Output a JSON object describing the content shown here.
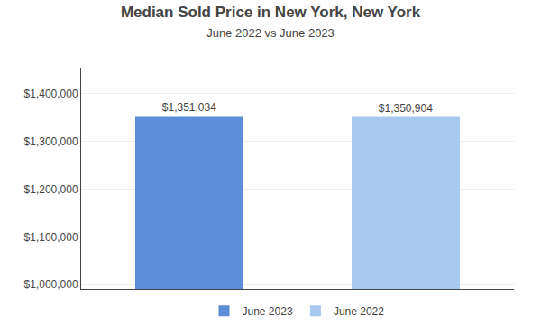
{
  "chart_data": {
    "type": "bar",
    "title": "Median Sold Price in New York, New York",
    "subtitle": "June 2022 vs June 2023",
    "categories": [
      "June 2023",
      "June 2022"
    ],
    "values": [
      1351034,
      1350904
    ],
    "colors": [
      "#5b8dd9",
      "#a8c8f0"
    ],
    "data_labels": true,
    "value_labels": [
      "$1,351,034",
      "$1,350,904"
    ],
    "ylim": [
      991000,
      1454000
    ],
    "yticks": [
      {
        "value": 1000000,
        "label": "$1,000,000"
      },
      {
        "value": 1100000,
        "label": "$1,100,000"
      },
      {
        "value": 1200000,
        "label": "$1,200,000"
      },
      {
        "value": 1300000,
        "label": "$1,300,000"
      },
      {
        "value": 1400000,
        "label": "$1,400,000"
      }
    ],
    "grid": true,
    "legend": "bottom",
    "tick_labels": "y"
  }
}
